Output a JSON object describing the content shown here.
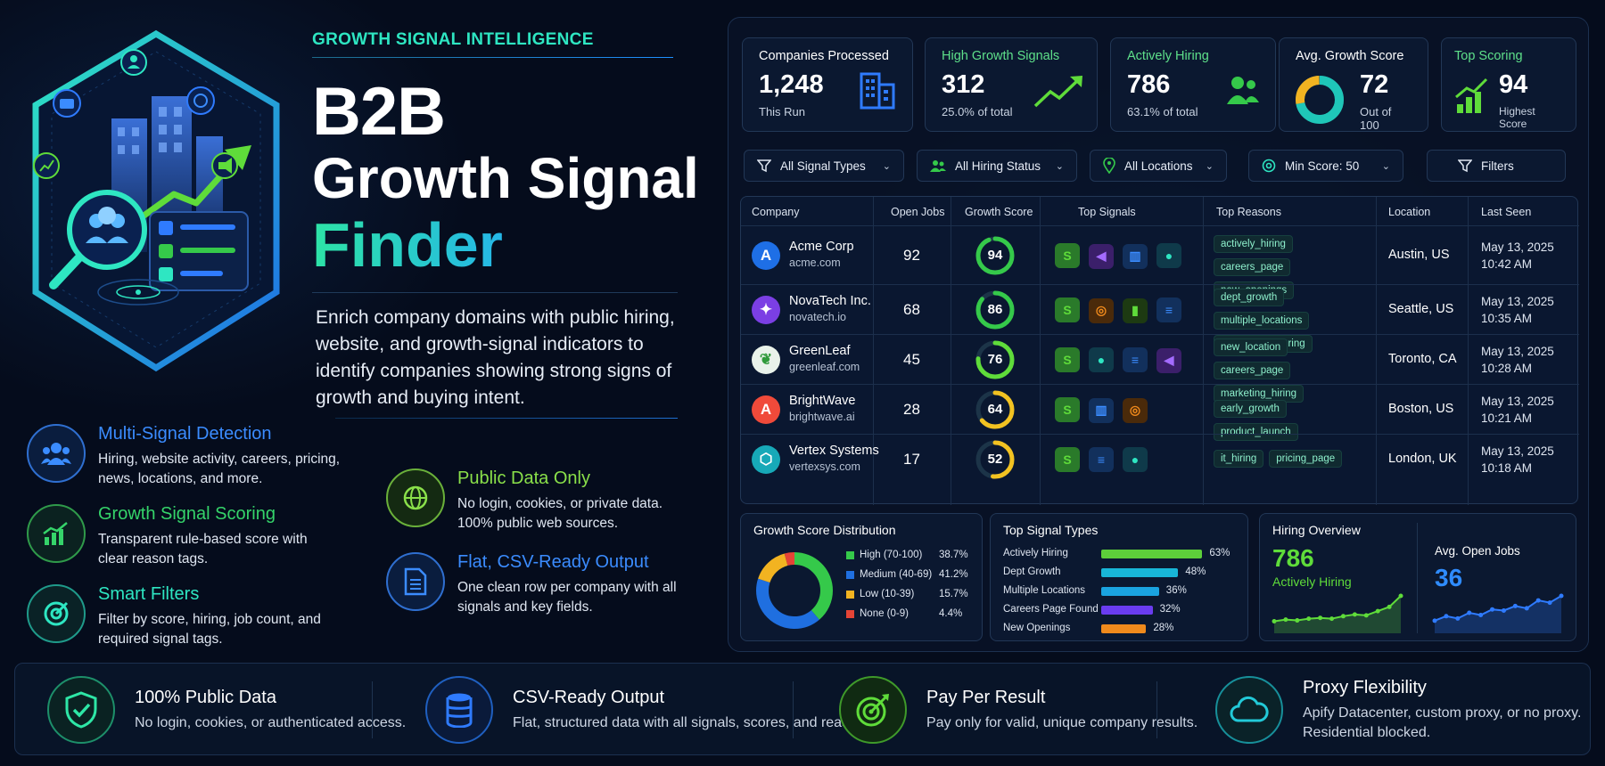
{
  "hero": {
    "eyebrow": "GROWTH SIGNAL INTELLIGENCE",
    "title_line1": "B2B",
    "title_line2": "Growth Signal",
    "title_line3": "Finder",
    "description": "Enrich company domains with public hiring, website, and growth-signal indicators to identify companies showing strong signs of growth and buying intent."
  },
  "features": [
    {
      "title": "Multi-Signal Detection",
      "desc": "Hiring, website activity, careers, pricing, news, locations, and more.",
      "color": "#3b8cff",
      "icon": "people-icon"
    },
    {
      "title": "Growth Signal Scoring",
      "desc": "Transparent rule-based score with clear reason tags.",
      "color": "#35d46a",
      "icon": "chart-up-icon"
    },
    {
      "title": "Smart Filters",
      "desc": "Filter by score, hiring, job count, and required signal tags.",
      "color": "#2ee6c2",
      "icon": "target-icon"
    },
    {
      "title": "Public Data Only",
      "desc": "No login, cookies, or private data. 100% public web sources.",
      "color": "#8ae04a",
      "icon": "globe-icon"
    },
    {
      "title": "Flat, CSV-Ready Output",
      "desc": "One clean row per company with all signals and key fields.",
      "color": "#3b8cff",
      "icon": "document-icon"
    }
  ],
  "kpis": [
    {
      "label": "Companies Processed",
      "value": "1,248",
      "sub": "This Run",
      "label_color": "#ffffff",
      "icon": "building-icon"
    },
    {
      "label": "High Growth Signals",
      "value": "312",
      "sub": "25.0% of total",
      "label_color": "#5ee08a",
      "icon": "trend-up-icon"
    },
    {
      "label": "Actively Hiring",
      "value": "786",
      "sub": "63.1% of total",
      "label_color": "#5ee08a",
      "icon": "people-icon"
    },
    {
      "label": "Avg. Growth Score",
      "value": "72",
      "sub": "Out of 100",
      "label_color": "#ffffff",
      "icon": "donut-icon"
    },
    {
      "label": "Top Scoring",
      "value": "94",
      "sub": "Highest Score",
      "label_color": "#5ee08a",
      "icon": "bar-chart-icon"
    }
  ],
  "filters": [
    {
      "label": "All Signal Types",
      "icon": "funnel-icon"
    },
    {
      "label": "All Hiring Status",
      "icon": "people-icon"
    },
    {
      "label": "All Locations",
      "icon": "pin-icon"
    },
    {
      "label": "Min Score: 50",
      "icon": "target-icon"
    },
    {
      "label": "Filters",
      "icon": "funnel-icon"
    }
  ],
  "table": {
    "headers": [
      "Company",
      "Open Jobs",
      "Growth Score",
      "Top Signals",
      "Top Reasons",
      "Location",
      "Last Seen"
    ],
    "rows": [
      {
        "name": "Acme Corp",
        "domain": "acme.com",
        "jobs": "92",
        "score": "94",
        "score_num": 94,
        "logo": "A",
        "logo_color": "#1e6fe6",
        "signals": [
          "shopify",
          "megaphone",
          "building",
          "pin"
        ],
        "tags": [
          "actively_hiring",
          "careers_page",
          "new_openings"
        ],
        "location": "Austin, US",
        "date": "May 13, 2025",
        "time": "10:42 AM"
      },
      {
        "name": "NovaTech Inc.",
        "domain": "novatech.io",
        "jobs": "68",
        "score": "86",
        "score_num": 86,
        "logo": "✦",
        "logo_color": "#7b3fe4",
        "signals": [
          "shopify",
          "globe",
          "bar",
          "doc"
        ],
        "tags": [
          "dept_growth",
          "multiple_locations",
          "hiring_engineering"
        ],
        "location": "Seattle, US",
        "date": "May 13, 2025",
        "time": "10:35 AM"
      },
      {
        "name": "GreenLeaf",
        "domain": "greenleaf.com",
        "jobs": "45",
        "score": "76",
        "score_num": 76,
        "logo": "❦",
        "logo_color": "#e9f2ea",
        "signals": [
          "shopify",
          "pin",
          "doc",
          "megaphone"
        ],
        "tags": [
          "new_location",
          "careers_page",
          "marketing_hiring"
        ],
        "location": "Toronto, CA",
        "date": "May 13, 2025",
        "time": "10:28 AM"
      },
      {
        "name": "BrightWave",
        "domain": "brightwave.ai",
        "jobs": "28",
        "score": "64",
        "score_num": 64,
        "logo": "A",
        "logo_color": "#f04a3a",
        "signals": [
          "shopify",
          "building",
          "globe"
        ],
        "tags": [
          "early_growth",
          "product_launch"
        ],
        "location": "Boston, US",
        "date": "May 13, 2025",
        "time": "10:21 AM"
      },
      {
        "name": "Vertex Systems",
        "domain": "vertexsys.com",
        "jobs": "17",
        "score": "52",
        "score_num": 52,
        "logo": "⬡",
        "logo_color": "#17a9b8",
        "signals": [
          "shopify",
          "doc",
          "pin"
        ],
        "tags": [
          "it_hiring",
          "pricing_page"
        ],
        "location": "London, UK",
        "date": "May 13, 2025",
        "time": "10:18 AM"
      }
    ]
  },
  "distribution": {
    "title": "Growth Score Distribution",
    "items": [
      {
        "label": "High (70-100)",
        "pct": "38.7%",
        "value": 38.7,
        "color": "#35c94a"
      },
      {
        "label": "Medium (40-69)",
        "pct": "41.2%",
        "value": 41.2,
        "color": "#1f6fe0"
      },
      {
        "label": "Low (10-39)",
        "pct": "15.7%",
        "value": 15.7,
        "color": "#f2b321"
      },
      {
        "label": "None (0-9)",
        "pct": "4.4%",
        "value": 4.4,
        "color": "#e54436"
      }
    ]
  },
  "signal_types": {
    "title": "Top Signal Types",
    "items": [
      {
        "label": "Actively Hiring",
        "pct": "63%",
        "value": 63,
        "color": "#5dcf3a"
      },
      {
        "label": "Dept Growth",
        "pct": "48%",
        "value": 48,
        "color": "#18b6d8"
      },
      {
        "label": "Multiple Locations",
        "pct": "36%",
        "value": 36,
        "color": "#1aa3e0"
      },
      {
        "label": "Careers Page Found",
        "pct": "32%",
        "value": 32,
        "color": "#6a3cf0"
      },
      {
        "label": "New Openings",
        "pct": "28%",
        "value": 28,
        "color": "#f08a1c"
      }
    ]
  },
  "hiring": {
    "title": "Hiring Overview",
    "hiring_value": "786",
    "hiring_label": "Actively Hiring",
    "jobs_label": "Avg. Open Jobs",
    "jobs_value": "36",
    "green_series": [
      10,
      12,
      11,
      13,
      14,
      13,
      16,
      18,
      17,
      22,
      27,
      40
    ],
    "blue_series": [
      8,
      12,
      10,
      15,
      13,
      18,
      17,
      21,
      19,
      26,
      24,
      30
    ]
  },
  "bottom": [
    {
      "title": "100% Public Data",
      "desc": "No login, cookies, or authenticated access.",
      "color": "#2ee6a6",
      "icon": "shield-check-icon"
    },
    {
      "title": "CSV-Ready Output",
      "desc": "Flat, structured data with all signals, scores, and reason tags.",
      "color": "#2f7bff",
      "icon": "database-icon"
    },
    {
      "title": "Pay Per Result",
      "desc": "Pay only for valid, unique company results.",
      "color": "#5fdc3a",
      "icon": "target-icon"
    },
    {
      "title": "Proxy Flexibility",
      "desc": "Apify Datacenter, custom proxy, or no proxy. Residential blocked.",
      "color": "#22c9d8",
      "icon": "cloud-icon"
    }
  ]
}
